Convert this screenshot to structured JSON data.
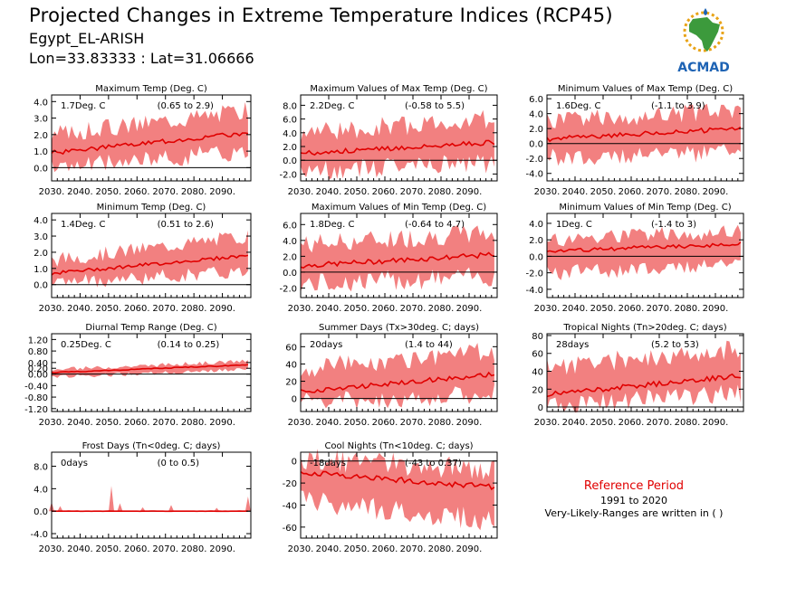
{
  "header": {
    "title": "Projected Changes in Extreme Temperature Indices (RCP45)",
    "station": "Egypt_EL-ARISH",
    "coords": "Lon=33.83333 : Lat=31.06666",
    "logo_text": "ACMAD"
  },
  "footer": {
    "ref_title": "Reference Period",
    "ref_years": "1991 to 2020",
    "ref_note": "Very-Likely-Ranges are written in ( )"
  },
  "colors": {
    "band": "#f28080",
    "line": "#e00000",
    "zero": "#000000",
    "logo_green": "#3c9a3c",
    "logo_blue": "#1e63b4",
    "logo_gold": "#e8a317"
  },
  "chart_data": [
    {
      "type": "area",
      "title": "Maximum Temp (Deg. C)",
      "mean_label": "1.7Deg. C",
      "range_label": "(0.65 to 2.9)",
      "x": [
        2030,
        2100
      ],
      "xticks": [
        "2030.",
        "2040.",
        "2050.",
        "2060.",
        "2070.",
        "2080.",
        "2090."
      ],
      "ylim": [
        -0.8,
        4.4
      ],
      "yticks": [
        "0.0",
        "1.0",
        "2.0",
        "3.0",
        "4.0"
      ],
      "ytick_values": [
        0,
        1,
        2,
        3,
        4
      ],
      "median": {
        "start": 0.9,
        "end": 2.1
      },
      "band": {
        "low_start": 0.0,
        "low_end": 1.0,
        "high_start": 2.0,
        "high_end": 3.5
      }
    },
    {
      "type": "area",
      "title": "Maximum Values of Max Temp (Deg. C)",
      "mean_label": "2.2Deg. C",
      "range_label": "(-0.58 to 5.5)",
      "x": [
        2030,
        2100
      ],
      "xticks": [
        "2030.",
        "2040.",
        "2050.",
        "2060.",
        "2070.",
        "2080.",
        "2090."
      ],
      "ylim": [
        -3.0,
        9.5
      ],
      "yticks": [
        "-2.0",
        "0.0",
        "2.0",
        "4.0",
        "6.0",
        "8.0"
      ],
      "ytick_values": [
        -2,
        0,
        2,
        4,
        6,
        8
      ],
      "median": {
        "start": 1.0,
        "end": 2.6
      },
      "band": {
        "low_start": -1.5,
        "low_end": -0.5,
        "high_start": 4.0,
        "high_end": 6.0
      }
    },
    {
      "type": "area",
      "title": "Minimum Values of Max Temp (Deg. C)",
      "mean_label": "1.6Deg. C",
      "range_label": "(-1.1 to 3.9)",
      "x": [
        2030,
        2100
      ],
      "xticks": [
        "2030.",
        "2040.",
        "2050.",
        "2060.",
        "2070.",
        "2080.",
        "2090."
      ],
      "ylim": [
        -5.0,
        6.5
      ],
      "yticks": [
        "-4.0",
        "-2.0",
        "0.0",
        "2.0",
        "4.0",
        "6.0"
      ],
      "ytick_values": [
        -4,
        -2,
        0,
        2,
        4,
        6
      ],
      "median": {
        "start": 0.6,
        "end": 2.0
      },
      "band": {
        "low_start": -2.0,
        "low_end": -1.0,
        "high_start": 3.0,
        "high_end": 4.5
      }
    },
    {
      "type": "area",
      "title": "Minimum Temp (Deg. C)",
      "mean_label": "1.4Deg. C",
      "range_label": "(0.51 to 2.6)",
      "x": [
        2030,
        2100
      ],
      "xticks": [
        "2030.",
        "2040.",
        "2050.",
        "2060.",
        "2070.",
        "2080.",
        "2090."
      ],
      "ylim": [
        -0.8,
        4.4
      ],
      "yticks": [
        "0.0",
        "1.0",
        "2.0",
        "3.0",
        "4.0"
      ],
      "ytick_values": [
        0,
        1,
        2,
        3,
        4
      ],
      "median": {
        "start": 0.7,
        "end": 1.8
      },
      "band": {
        "low_start": 0.1,
        "low_end": 0.8,
        "high_start": 1.5,
        "high_end": 3.0
      }
    },
    {
      "type": "area",
      "title": "Maximum Values of Min Temp (Deg. C)",
      "mean_label": "1.8Deg. C",
      "range_label": "(-0.64 to 4.7)",
      "x": [
        2030,
        2100
      ],
      "xticks": [
        "2030.",
        "2040.",
        "2050.",
        "2060.",
        "2070.",
        "2080.",
        "2090."
      ],
      "ylim": [
        -3.2,
        7.4
      ],
      "yticks": [
        "-2.0",
        "0.0",
        "2.0",
        "4.0",
        "6.0"
      ],
      "ytick_values": [
        -2,
        0,
        2,
        4,
        6
      ],
      "median": {
        "start": 0.8,
        "end": 2.2
      },
      "band": {
        "low_start": -1.5,
        "low_end": -0.5,
        "high_start": 3.5,
        "high_end": 5.0
      }
    },
    {
      "type": "area",
      "title": "Minimum Values of Min Temp (Deg. C)",
      "mean_label": "1Deg. C",
      "range_label": "(-1.4 to 3)",
      "x": [
        2030,
        2100
      ],
      "xticks": [
        "2030.",
        "2040.",
        "2050.",
        "2060.",
        "2070.",
        "2080.",
        "2090."
      ],
      "ylim": [
        -5.0,
        5.2
      ],
      "yticks": [
        "-4.0",
        "-2.0",
        "0.0",
        "2.0",
        "4.0"
      ],
      "ytick_values": [
        -4,
        -2,
        0,
        2,
        4
      ],
      "median": {
        "start": 0.6,
        "end": 1.5
      },
      "band": {
        "low_start": -2.0,
        "low_end": -1.0,
        "high_start": 2.0,
        "high_end": 3.0
      }
    },
    {
      "type": "area",
      "title": "Diurnal Temp Range (Deg. C)",
      "mean_label": "0.25Deg. C",
      "range_label": "(0.14 to 0.25)",
      "x": [
        2030,
        2100
      ],
      "xticks": [
        "2030.",
        "2040.",
        "2050.",
        "2060.",
        "2070.",
        "2080.",
        "2090."
      ],
      "ylim": [
        -1.3,
        1.4
      ],
      "yticks": [
        "-1.20",
        "-0.80",
        "-0.40",
        "0.00",
        "0.20",
        "0.40",
        "0.80",
        "1.20"
      ],
      "ytick_values": [
        -1.2,
        -0.8,
        -0.4,
        0.0,
        0.2,
        0.4,
        0.8,
        1.2
      ],
      "median": {
        "start": 0.05,
        "end": 0.32
      },
      "band": {
        "low_start": -0.1,
        "low_end": 0.15,
        "high_start": 0.15,
        "high_end": 0.45
      }
    },
    {
      "type": "area",
      "title": "Summer Days (Tx>30deg. C; days)",
      "mean_label": "20days",
      "range_label": "(1.4 to 44)",
      "x": [
        2030,
        2100
      ],
      "xticks": [
        "2030.",
        "2040.",
        "2050.",
        "2060.",
        "2070.",
        "2080.",
        "2090."
      ],
      "ylim": [
        -15,
        75
      ],
      "yticks": [
        "0",
        "20",
        "40",
        "60"
      ],
      "ytick_values": [
        0,
        20,
        40,
        60
      ],
      "median": {
        "start": 8,
        "end": 28
      },
      "band": {
        "low_start": -5,
        "low_end": 5,
        "high_start": 35,
        "high_end": 55
      }
    },
    {
      "type": "area",
      "title": "Tropical Nights (Tn>20deg. C; days)",
      "mean_label": "28days",
      "range_label": "(5.2 to 53)",
      "x": [
        2030,
        2100
      ],
      "xticks": [
        "2030.",
        "2040.",
        "2050.",
        "2060.",
        "2070.",
        "2080.",
        "2090."
      ],
      "ylim": [
        -5,
        82
      ],
      "yticks": [
        "0",
        "20",
        "40",
        "60",
        "80"
      ],
      "ytick_values": [
        0,
        20,
        40,
        60,
        80
      ],
      "median": {
        "start": 14,
        "end": 35
      },
      "band": {
        "low_start": 2,
        "low_end": 15,
        "high_start": 45,
        "high_end": 65
      }
    },
    {
      "type": "area",
      "title": "Frost Days (Tn<0deg. C; days)",
      "mean_label": "0days",
      "range_label": "(0 to 0.5)",
      "x": [
        2030,
        2100
      ],
      "xticks": [
        "2030.",
        "2040.",
        "2050.",
        "2060.",
        "2070.",
        "2080.",
        "2090."
      ],
      "ylim": [
        -4.8,
        10.5
      ],
      "yticks": [
        "-4.0",
        "0.0",
        "4.0",
        "8.0"
      ],
      "ytick_values": [
        -4,
        0,
        4,
        8
      ],
      "median": {
        "start": 0,
        "end": 0
      },
      "band": {
        "low_start": 0,
        "low_end": 0,
        "high_start": 0.2,
        "high_end": 0.2
      },
      "spikes": [
        [
          2030,
          1.6
        ],
        [
          2033,
          0.9
        ],
        [
          2051,
          4.5
        ],
        [
          2054,
          1.4
        ],
        [
          2062,
          0.7
        ],
        [
          2072,
          1.1
        ],
        [
          2088,
          0.6
        ],
        [
          2099,
          2.6
        ]
      ]
    },
    {
      "type": "area",
      "title": "Cool Nights (Tn<10deg. C; days)",
      "mean_label": "-18days",
      "range_label": "(-43 to 0.37)",
      "x": [
        2030,
        2100
      ],
      "xticks": [
        "2030.",
        "2040.",
        "2050.",
        "2060.",
        "2070.",
        "2080.",
        "2090."
      ],
      "ylim": [
        -70,
        8
      ],
      "yticks": [
        "-60",
        "-40",
        "-20",
        "0"
      ],
      "ytick_values": [
        -60,
        -40,
        -20,
        0
      ],
      "median": {
        "start": -10,
        "end": -24
      },
      "band": {
        "low_start": -35,
        "low_end": -55,
        "high_start": 2,
        "high_end": -8
      }
    }
  ]
}
